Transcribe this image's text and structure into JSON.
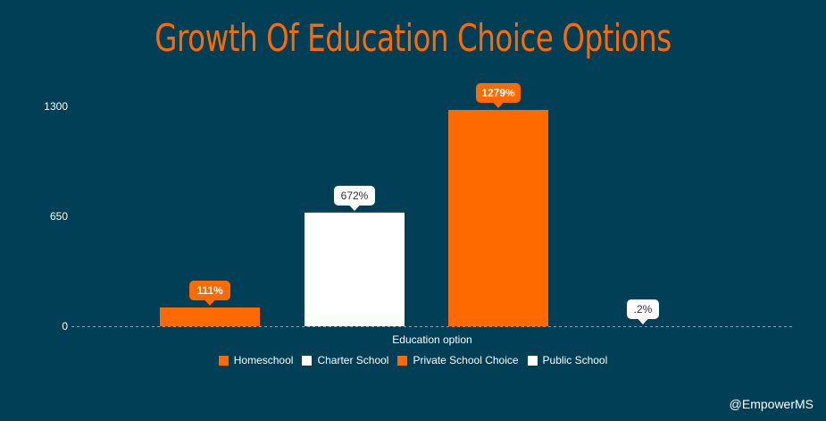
{
  "title": "Growth Of Education Choice Options",
  "credit": "@EmpowerMS",
  "colors": {
    "background": "#003f56",
    "orange": "#ff6a00",
    "white": "#ffffff",
    "baseline": "#7fa3b3"
  },
  "chart_data": {
    "type": "bar",
    "title": "Growth Of Education Choice Options",
    "xlabel": "Education option",
    "ylabel": "",
    "ylim": [
      0,
      1300
    ],
    "yticks": [
      0,
      650,
      1300
    ],
    "grid": false,
    "legend_position": "bottom",
    "series": [
      {
        "name": "Homeschool",
        "value": 111,
        "label": "111%",
        "color": "#ff6a00"
      },
      {
        "name": "Charter School",
        "value": 672,
        "label": "672%",
        "color": "#ffffff"
      },
      {
        "name": "Private School Choice",
        "value": 1279,
        "label": "1279%",
        "color": "#ff6a00"
      },
      {
        "name": "Public School",
        "value": 0.2,
        "label": ".2%",
        "color": "#ffffff"
      }
    ]
  }
}
